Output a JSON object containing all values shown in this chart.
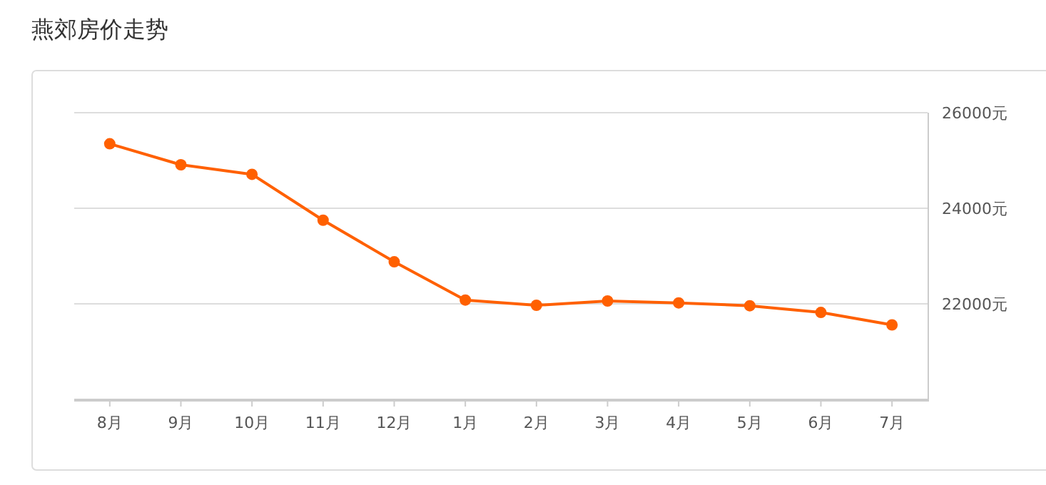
{
  "chart_data": {
    "type": "line",
    "title": "燕郊房价走势",
    "categories": [
      "8月",
      "9月",
      "10月",
      "11月",
      "12月",
      "1月",
      "2月",
      "3月",
      "4月",
      "5月",
      "6月",
      "7月"
    ],
    "series": [
      {
        "color": "#ff6000",
        "values": [
          25350,
          24910,
          24710,
          23750,
          22880,
          22080,
          21970,
          22060,
          22020,
          21960,
          21820,
          21560
        ]
      }
    ],
    "ylim": [
      20000,
      26000
    ],
    "yticks": [
      {
        "value": 20000,
        "label": null
      },
      {
        "value": 22000,
        "label": "22000元"
      },
      {
        "value": 24000,
        "label": "24000元"
      },
      {
        "value": 26000,
        "label": "26000元"
      }
    ],
    "grid": "y",
    "marker": "circle",
    "line_style": "solid"
  }
}
